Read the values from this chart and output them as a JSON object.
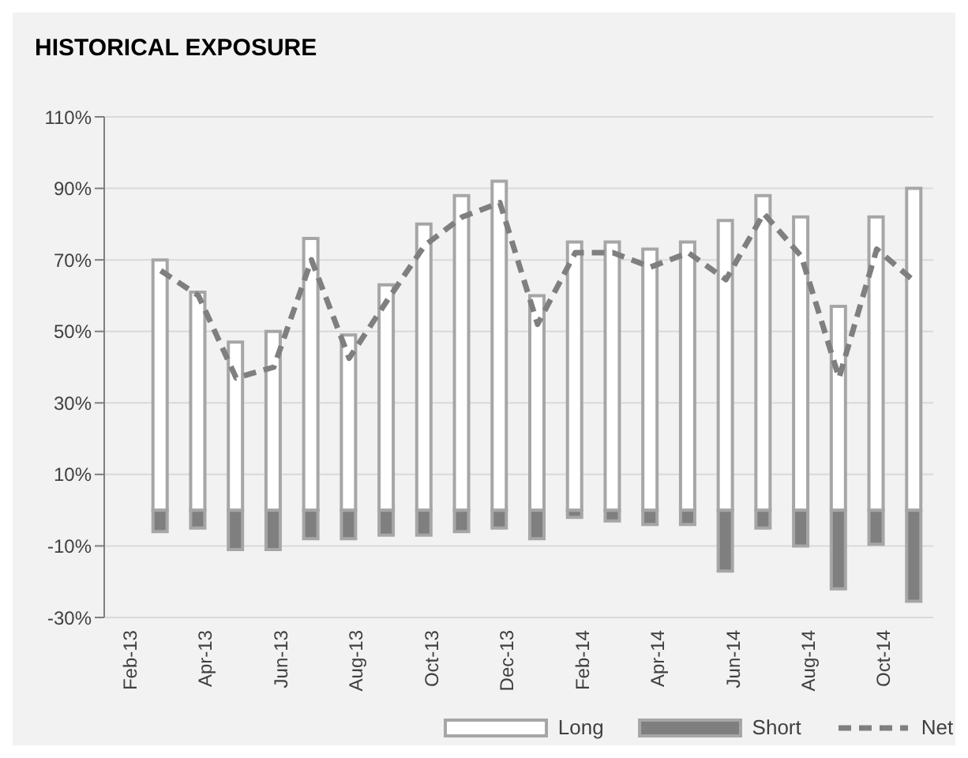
{
  "chart_data": {
    "type": "bar",
    "title": "HISTORICAL EXPOSURE",
    "categories": [
      "Feb-13",
      null,
      "Apr-13",
      null,
      "Jun-13",
      null,
      "Aug-13",
      null,
      "Oct-13",
      null,
      "Dec-13",
      null,
      "Feb-14",
      null,
      "Apr-14",
      null,
      "Jun-14",
      null,
      "Aug-14",
      null,
      "Oct-14",
      null
    ],
    "series": [
      {
        "name": "Long",
        "color": "#ffffff",
        "values": [
          null,
          70,
          61,
          47,
          50,
          76,
          49,
          63,
          80,
          88,
          92,
          60,
          75,
          75,
          73,
          75,
          81,
          88,
          82,
          57,
          82,
          90
        ]
      },
      {
        "name": "Short",
        "color": "#7f7f7f",
        "values": [
          null,
          -6,
          -5,
          -11,
          -11,
          -8,
          -8,
          -7,
          -7,
          -6,
          -5,
          -8,
          -2,
          -3,
          -4,
          -4,
          -17,
          -5,
          -10,
          -22,
          -9.5,
          -25.5
        ]
      },
      {
        "name": "Net",
        "type": "line",
        "color": "#7f7f7f",
        "line_style": "dashed",
        "values": [
          null,
          67,
          60,
          37,
          40,
          70,
          42.5,
          58.5,
          74,
          82,
          86,
          52,
          72,
          72,
          68,
          72,
          64.5,
          83,
          71,
          37,
          73,
          64
        ]
      }
    ],
    "stacked": true,
    "ylim": [
      -30,
      110
    ],
    "yticks": [
      {
        "value": -30,
        "label": "-30%"
      },
      {
        "value": -10,
        "label": "-10%"
      },
      {
        "value": 10,
        "label": "10%"
      },
      {
        "value": 30,
        "label": "30%"
      },
      {
        "value": 50,
        "label": "50%"
      },
      {
        "value": 70,
        "label": "70%"
      },
      {
        "value": 90,
        "label": "90%"
      },
      {
        "value": 110,
        "label": "110%"
      }
    ],
    "grid": "y",
    "legend": "bottom",
    "marker": "none"
  }
}
